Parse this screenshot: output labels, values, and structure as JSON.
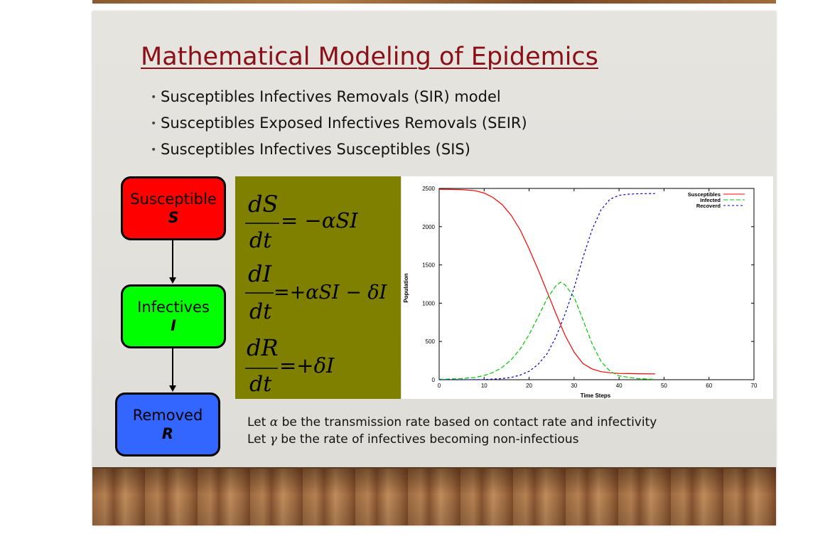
{
  "slide": {
    "title": "Mathematical Modeling of Epidemics",
    "bullets": [
      "Susceptibles Infectives Removals (SIR) model",
      "Susceptibles Exposed Infectives Removals (SEIR)",
      "Susceptibles Infectives Susceptibles (SIS)"
    ]
  },
  "flow": {
    "susceptible": {
      "label": "Susceptible",
      "symbol": "S",
      "color": "#ff0000"
    },
    "infectives": {
      "label": "Infectives",
      "symbol": "I",
      "color": "#00ff00"
    },
    "removed": {
      "label": "Removed",
      "symbol": "R",
      "color": "#3366ff"
    }
  },
  "equations": {
    "panel_color": "#7f7f00",
    "eq1": {
      "num": "dS",
      "den": "dt",
      "rhs": "= −αSI"
    },
    "eq2": {
      "num": "dI",
      "den": "dt",
      "rhs": "=+αSI − δI"
    },
    "eq3": {
      "num": "dR",
      "den": "dt",
      "rhs": "=+δI"
    }
  },
  "captions": {
    "line1_prefix": "Let ",
    "line1_symbol": "α",
    "line1_rest": " be the transmission rate based on contact rate and infectivity",
    "line2_prefix": "Let ",
    "line2_symbol": "γ",
    "line2_rest": " be the rate of infectives becoming non-infectious"
  },
  "chart_data": {
    "type": "line",
    "xlabel": "Time Steps",
    "ylabel": "Population",
    "xlim": [
      0,
      70
    ],
    "ylim": [
      0,
      2500
    ],
    "xticks": [
      0,
      10,
      20,
      30,
      40,
      50,
      60,
      70
    ],
    "yticks": [
      0,
      500,
      1000,
      1500,
      2000,
      2500
    ],
    "legend_position": "top-right",
    "series": [
      {
        "name": "Susceptibles",
        "color": "#ff0000",
        "dash": "solid",
        "x": [
          0,
          5,
          8,
          10,
          12,
          14,
          16,
          18,
          20,
          22,
          24,
          26,
          28,
          30,
          32,
          34,
          36,
          38,
          40,
          44,
          48
        ],
        "y": [
          2490,
          2485,
          2470,
          2440,
          2380,
          2290,
          2150,
          1960,
          1710,
          1440,
          1150,
          860,
          580,
          360,
          210,
          140,
          105,
          90,
          82,
          78,
          75
        ]
      },
      {
        "name": "Infected",
        "color": "#00cc00",
        "dash": "6,3",
        "x": [
          0,
          5,
          8,
          10,
          12,
          14,
          16,
          18,
          20,
          22,
          24,
          26,
          27,
          28,
          30,
          32,
          34,
          36,
          38,
          40,
          44,
          48
        ],
        "y": [
          5,
          15,
          30,
          55,
          95,
          160,
          260,
          400,
          590,
          820,
          1060,
          1230,
          1275,
          1240,
          1080,
          780,
          470,
          240,
          110,
          50,
          15,
          5
        ]
      },
      {
        "name": "Recoverd",
        "color": "#0000cc",
        "dash": "3,3",
        "x": [
          0,
          5,
          10,
          14,
          16,
          18,
          20,
          22,
          24,
          26,
          28,
          30,
          32,
          34,
          36,
          38,
          40,
          42,
          44,
          46,
          48
        ],
        "y": [
          0,
          0,
          2,
          15,
          30,
          60,
          110,
          200,
          340,
          560,
          860,
          1200,
          1600,
          1960,
          2220,
          2360,
          2410,
          2425,
          2430,
          2432,
          2433
        ]
      }
    ]
  }
}
